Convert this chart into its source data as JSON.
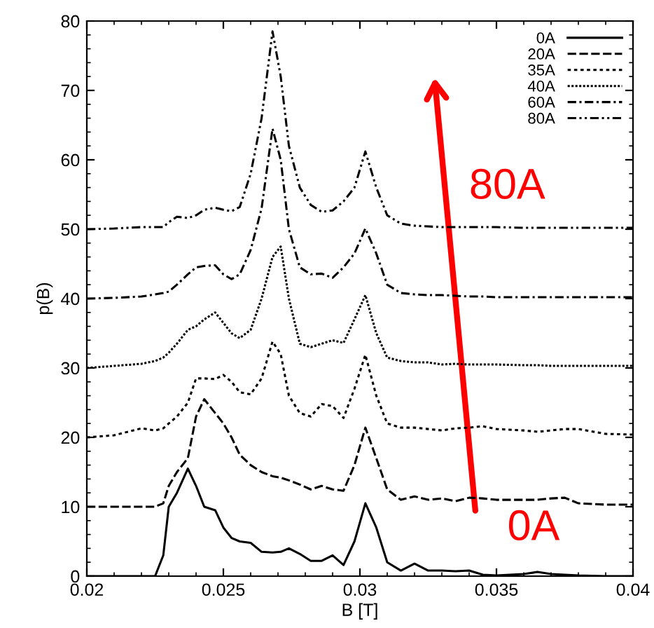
{
  "chart_data": {
    "type": "line",
    "xlabel": "B [T]",
    "ylabel": "p(B)",
    "xlim": [
      0.02,
      0.04
    ],
    "xticks": [
      0.02,
      0.025,
      0.03,
      0.035,
      0.04
    ],
    "ylim": [
      0,
      80
    ],
    "yticks": [
      0,
      10,
      20,
      30,
      40,
      50,
      60,
      70,
      80
    ],
    "grid": false,
    "legend": "top right",
    "x": [
      0.02,
      0.021,
      0.022,
      0.0225,
      0.0228,
      0.023,
      0.0233,
      0.0237,
      0.024,
      0.0243,
      0.0247,
      0.025,
      0.0253,
      0.0256,
      0.026,
      0.0264,
      0.0268,
      0.0271,
      0.0274,
      0.0278,
      0.0282,
      0.0286,
      0.029,
      0.0294,
      0.0298,
      0.0302,
      0.0306,
      0.031,
      0.0315,
      0.032,
      0.0325,
      0.033,
      0.0335,
      0.034,
      0.0345,
      0.035,
      0.036,
      0.0365,
      0.037,
      0.0375,
      0.038,
      0.039,
      0.04
    ],
    "series": [
      {
        "name": "0A",
        "color": "#000000",
        "line_style": "solid",
        "values": [
          0,
          0,
          0,
          0,
          3,
          10,
          12,
          15.5,
          13,
          10,
          9.5,
          7,
          5.5,
          5,
          4.8,
          3.5,
          3.4,
          3.5,
          4,
          3.2,
          2.2,
          2.2,
          3,
          1.6,
          5,
          10.5,
          7,
          2,
          0.8,
          1.8,
          0.8,
          0.8,
          0.7,
          0.8,
          0.2,
          0.1,
          0.3,
          0.6,
          0.3,
          0.2,
          0.1,
          0,
          0
        ]
      },
      {
        "name": "20A",
        "color": "#000000",
        "line_style": "dashed",
        "values": [
          10,
          10,
          10,
          10,
          10.5,
          13,
          15,
          17,
          23,
          25.5,
          23.5,
          22,
          20,
          17.5,
          16,
          15,
          14.4,
          14.2,
          13.8,
          13.2,
          12.5,
          13,
          12.5,
          12.3,
          16,
          21.4,
          17,
          12.5,
          11,
          11.5,
          11,
          11.2,
          10.8,
          11.3,
          11.2,
          11,
          11,
          11,
          11.2,
          11.3,
          10.5,
          10.3,
          10.3
        ]
      },
      {
        "name": "35A",
        "color": "#000000",
        "line_style": "dotted",
        "values": [
          20,
          20.3,
          21.3,
          21,
          21.3,
          22,
          23,
          25,
          28.5,
          28.5,
          28.4,
          29,
          28,
          26.5,
          26.2,
          28.5,
          33.8,
          32,
          26,
          23.5,
          23,
          24.8,
          24.5,
          22.8,
          27,
          31.9,
          26,
          22,
          21.4,
          21.4,
          21.2,
          21,
          21.3,
          21.4,
          21.6,
          21.2,
          21,
          20.8,
          21,
          21.2,
          21.2,
          20.5,
          20.4
        ]
      },
      {
        "name": "40A",
        "color": "#000000",
        "line_style": "densely dotted",
        "values": [
          30,
          30.3,
          30.6,
          31,
          31.5,
          32.2,
          33.5,
          35.5,
          36,
          37,
          38,
          36.5,
          35,
          34.3,
          35.5,
          40,
          46,
          47.5,
          40,
          33.5,
          33,
          33.5,
          34,
          33.6,
          37,
          40.5,
          35,
          31.5,
          31,
          30.8,
          30.8,
          30.5,
          30.6,
          30.5,
          30.5,
          30.5,
          30.4,
          30.4,
          30.3,
          30.3,
          30.3,
          30.3,
          30.3
        ]
      },
      {
        "name": "60A",
        "color": "#000000",
        "line_style": "dashdot",
        "values": [
          40,
          40.1,
          40.3,
          40.6,
          40.8,
          41,
          42,
          43.5,
          44.5,
          44.7,
          44.8,
          43.5,
          42.8,
          43.5,
          47,
          53,
          64.5,
          60,
          50,
          44.5,
          43.5,
          43.6,
          43,
          44.5,
          46.5,
          50.1,
          46.5,
          42,
          40.8,
          40.6,
          40.5,
          40.5,
          40.4,
          40.3,
          40.3,
          40.2,
          40.2,
          40.2,
          40.2,
          40.2,
          40.2,
          40.2,
          40.2
        ]
      },
      {
        "name": "80A",
        "color": "#000000",
        "line_style": "dashdotdot",
        "values": [
          50,
          50.1,
          50.3,
          50.3,
          50.3,
          51,
          51.8,
          51.6,
          52,
          52.8,
          53.1,
          52.8,
          52.6,
          53.2,
          58,
          66,
          78.5,
          72,
          62,
          56,
          53.5,
          52.5,
          52.7,
          54,
          56,
          61.2,
          56,
          52,
          50.8,
          50.5,
          50.4,
          50.3,
          50.3,
          50.3,
          50.3,
          50.3,
          50.2,
          50.2,
          50.2,
          50.2,
          50.2,
          50.2,
          50.2
        ]
      }
    ],
    "annotations": [
      "0A",
      "80A"
    ]
  }
}
